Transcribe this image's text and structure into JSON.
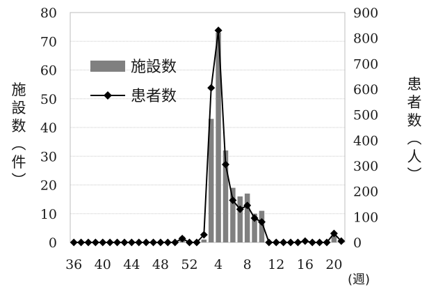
{
  "chart_data": {
    "type": "bar+line",
    "title": "",
    "xlabel": "(週)",
    "ylabel_left": "施設数（件）",
    "ylabel_right": "患者数（人）",
    "ylim_left": [
      0,
      80
    ],
    "ylim_right": [
      0,
      900
    ],
    "y_ticks_left": [
      "0",
      "10",
      "20",
      "30",
      "40",
      "50",
      "60",
      "70",
      "80"
    ],
    "y_ticks_right": [
      "0",
      "100",
      "200",
      "300",
      "400",
      "500",
      "600",
      "700",
      "800",
      "900"
    ],
    "x_tick_labels": [
      "36",
      "40",
      "44",
      "48",
      "52",
      "4",
      "8",
      "12",
      "16",
      "20"
    ],
    "categories": [
      "36",
      "37",
      "38",
      "39",
      "40",
      "41",
      "42",
      "43",
      "44",
      "45",
      "46",
      "47",
      "48",
      "49",
      "50",
      "51",
      "52",
      "1",
      "2",
      "3",
      "4",
      "5",
      "6",
      "7",
      "8",
      "9",
      "10",
      "11",
      "12",
      "13",
      "14",
      "15",
      "16",
      "17",
      "18",
      "19",
      "20",
      "21"
    ],
    "grid": "horizontal",
    "legend_position": "left-middle",
    "series": [
      {
        "name": "施設数",
        "type": "bar",
        "axis": "left",
        "color": "#808080",
        "values": [
          0,
          0,
          0,
          0,
          0,
          0,
          0,
          0,
          0,
          0,
          0,
          0,
          0,
          0,
          0,
          2,
          0,
          0,
          1,
          43,
          73,
          32,
          19,
          16,
          17,
          10,
          11,
          0,
          0,
          0,
          0,
          0,
          1,
          0,
          0,
          0,
          3,
          0
        ]
      },
      {
        "name": "患者数",
        "type": "line",
        "axis": "right",
        "color": "#000000",
        "values": [
          0,
          0,
          0,
          0,
          0,
          0,
          0,
          0,
          0,
          0,
          0,
          0,
          0,
          0,
          0,
          15,
          0,
          0,
          30,
          605,
          830,
          305,
          165,
          130,
          145,
          95,
          80,
          0,
          0,
          0,
          0,
          0,
          5,
          0,
          0,
          0,
          35,
          5
        ]
      }
    ]
  }
}
